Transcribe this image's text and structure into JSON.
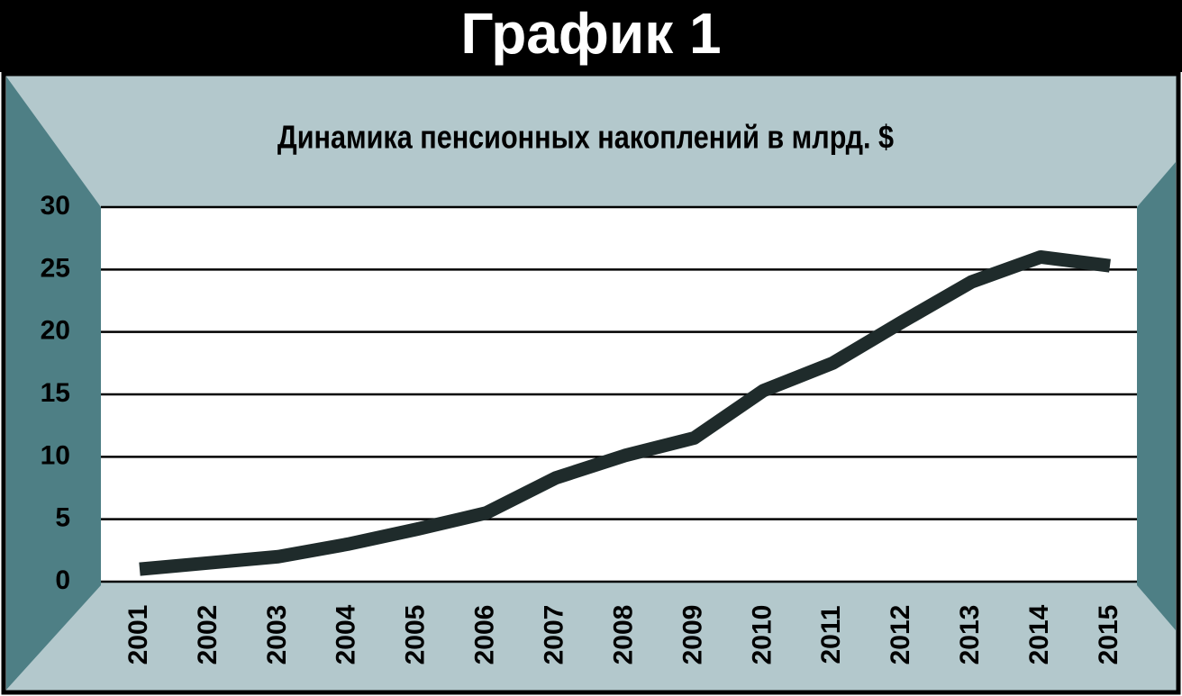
{
  "header": {
    "title": "График 1"
  },
  "chart_data": {
    "type": "line",
    "title": "Динамика пенсионных накоплений в млрд. $",
    "categories": [
      "2001",
      "2002",
      "2003",
      "2004",
      "2005",
      "2006",
      "2007",
      "2008",
      "2009",
      "2010",
      "2011",
      "2012",
      "2013",
      "2014",
      "2015"
    ],
    "values": [
      1.0,
      1.5,
      2.0,
      3.0,
      4.2,
      5.5,
      8.3,
      10.1,
      11.5,
      15.3,
      17.5,
      20.8,
      24.0,
      26.0,
      25.3
    ],
    "color": "#1f2b2b",
    "ylim": [
      0,
      30
    ],
    "yticks": [
      0,
      5,
      10,
      15,
      20,
      25,
      30
    ],
    "grid": true
  }
}
